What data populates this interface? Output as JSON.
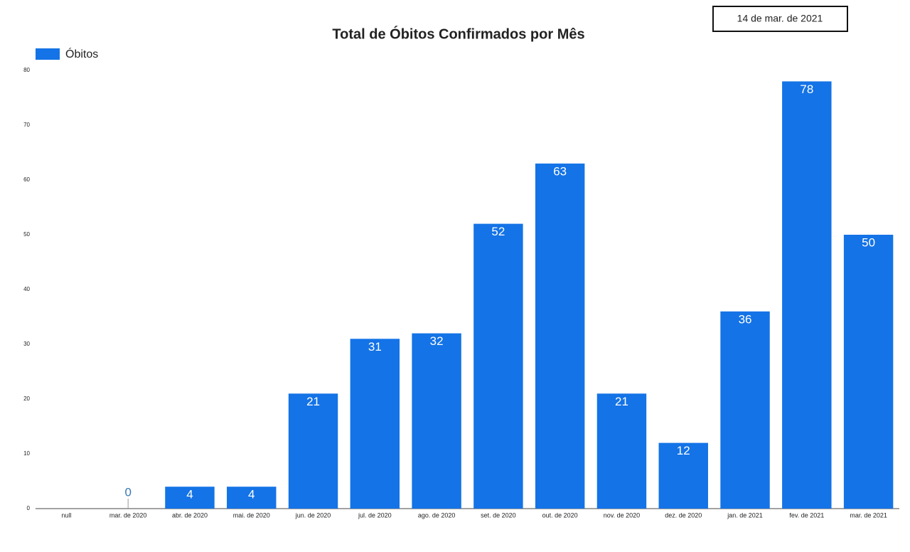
{
  "chart_data": {
    "type": "bar",
    "title": "Total de Óbitos Confirmados por Mês",
    "date_range": "14 de mar. de 2021",
    "categories": [
      "null",
      "mar. de 2020",
      "abr. de 2020",
      "mai. de 2020",
      "jun. de 2020",
      "jul. de 2020",
      "ago. de 2020",
      "set. de 2020",
      "out. de 2020",
      "nov. de 2020",
      "dez. de 2020",
      "jan. de 2021",
      "fev. de 2021",
      "mar. de 2021"
    ],
    "series": [
      {
        "name": "Óbitos",
        "color": "#1473e6",
        "values": [
          null,
          0,
          4,
          4,
          21,
          31,
          32,
          52,
          63,
          21,
          12,
          36,
          78,
          50
        ]
      }
    ],
    "ylim": [
      0,
      80
    ],
    "yticks": [
      0,
      10,
      20,
      30,
      40,
      50,
      60,
      70,
      80
    ],
    "grid": false,
    "legend": "top-left"
  }
}
